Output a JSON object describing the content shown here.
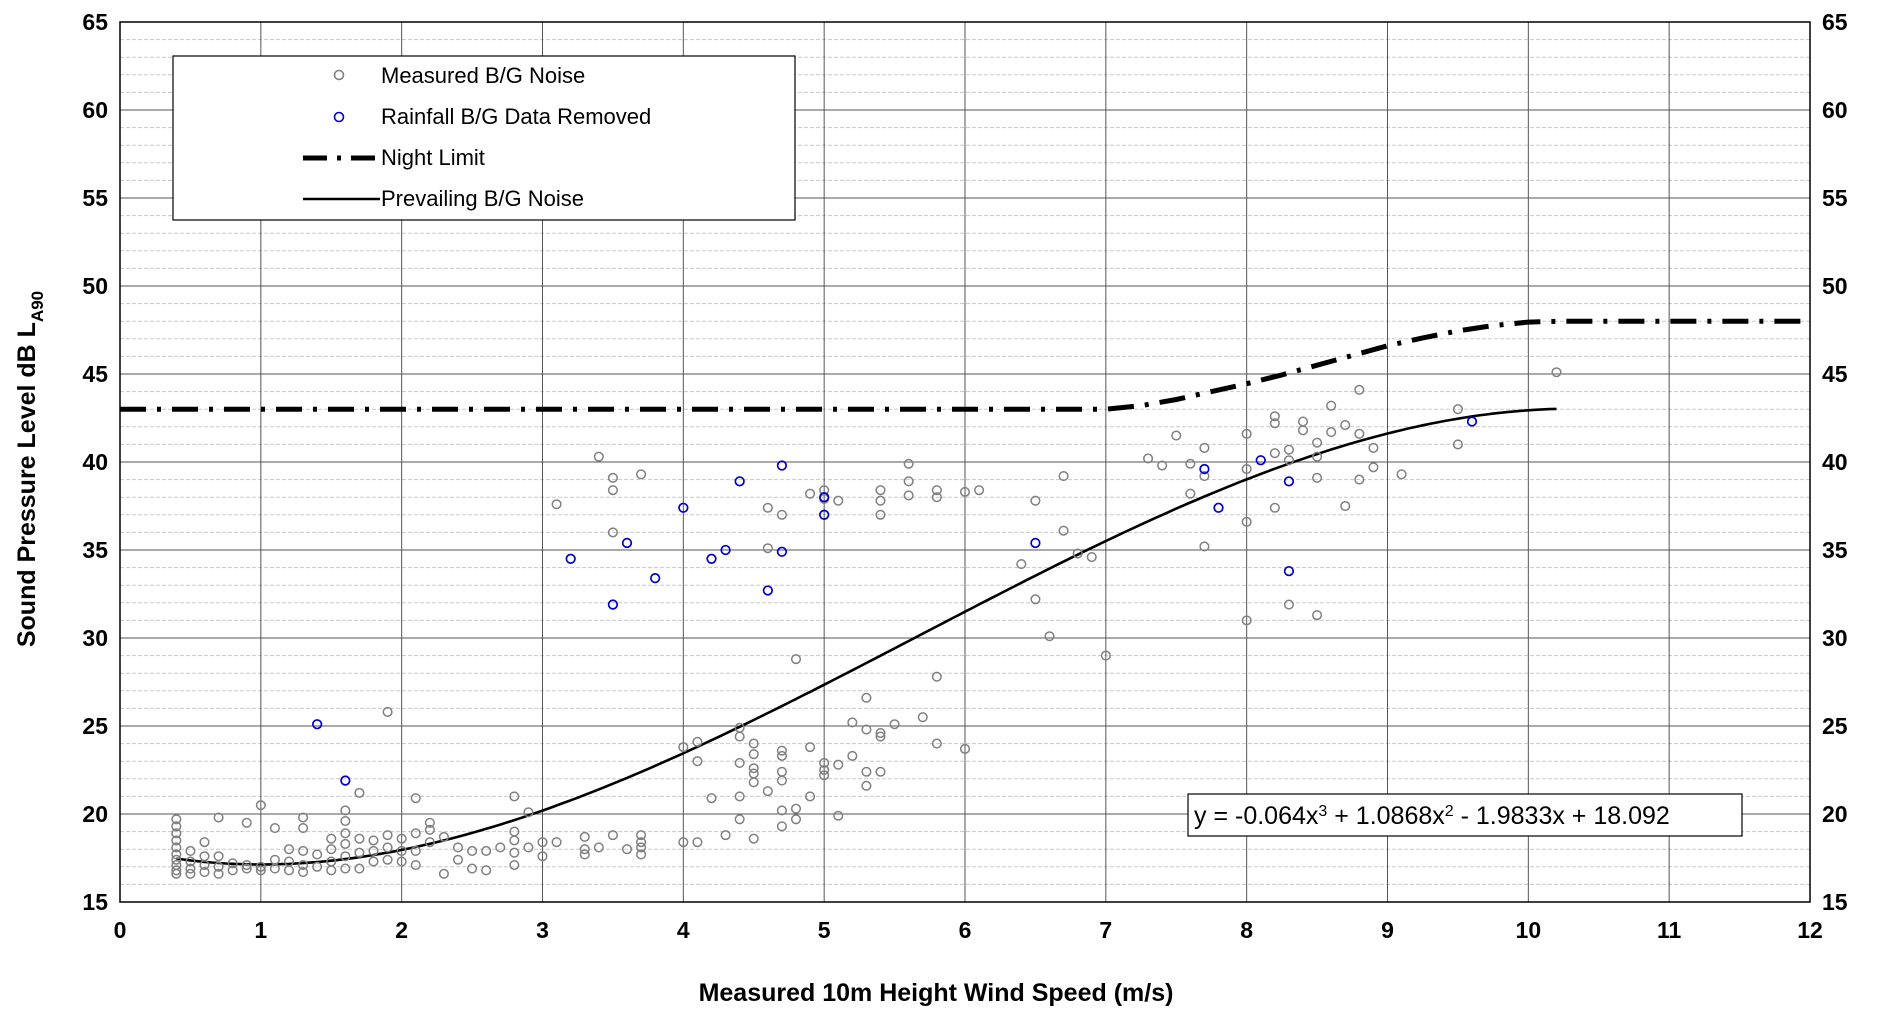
{
  "chart_data": {
    "type": "scatter",
    "xlabel": "Measured 10m Height Wind Speed (m/s)",
    "ylabel_main": "Sound Pressure Level dB L",
    "ylabel_sub": "A90",
    "xlim": [
      0,
      12
    ],
    "ylim": [
      15,
      65
    ],
    "x_ticks": [
      "0",
      "1",
      "2",
      "3",
      "4",
      "5",
      "6",
      "7",
      "8",
      "9",
      "10",
      "11",
      "12"
    ],
    "y_ticks": [
      "15",
      "20",
      "25",
      "30",
      "35",
      "40",
      "45",
      "50",
      "55",
      "60",
      "65"
    ],
    "grid": "major and minor",
    "legend_position": "top-left",
    "legend": {
      "measured": "Measured B/G Noise",
      "rainfall": "Rainfall B/G Data Removed",
      "night_limit": "Night Limit",
      "prevailing": "Prevailing B/G Noise"
    },
    "equation": {
      "prefix": "y = -0.064x",
      "sup1": "3",
      "mid1": " + 1.0868x",
      "sup2": "2",
      "rest": " - 1.9833x + 18.092"
    },
    "colors": {
      "measured": "#808080",
      "rainfall": "#0000cc",
      "lines": "#000000"
    },
    "series": [
      {
        "name": "Measured B/G Noise",
        "type": "scatter",
        "points": [
          [
            0.4,
            19.7
          ],
          [
            0.4,
            19.3
          ],
          [
            0.4,
            18.9
          ],
          [
            0.4,
            18.5
          ],
          [
            0.4,
            18.1
          ],
          [
            0.4,
            17.7
          ],
          [
            0.4,
            17.4
          ],
          [
            0.4,
            17.1
          ],
          [
            0.4,
            16.8
          ],
          [
            0.4,
            16.6
          ],
          [
            0.5,
            17.9
          ],
          [
            0.5,
            17.3
          ],
          [
            0.5,
            16.9
          ],
          [
            0.5,
            16.6
          ],
          [
            0.6,
            18.4
          ],
          [
            0.6,
            17.6
          ],
          [
            0.6,
            17.1
          ],
          [
            0.6,
            16.7
          ],
          [
            0.7,
            19.8
          ],
          [
            0.7,
            17.6
          ],
          [
            0.7,
            17.0
          ],
          [
            0.7,
            16.6
          ],
          [
            0.8,
            17.2
          ],
          [
            0.8,
            16.8
          ],
          [
            0.9,
            19.5
          ],
          [
            0.9,
            17.1
          ],
          [
            0.9,
            16.9
          ],
          [
            1.0,
            20.5
          ],
          [
            1.0,
            17.0
          ],
          [
            1.0,
            16.8
          ],
          [
            1.1,
            19.2
          ],
          [
            1.1,
            17.4
          ],
          [
            1.1,
            16.9
          ],
          [
            1.2,
            18.0
          ],
          [
            1.2,
            17.3
          ],
          [
            1.2,
            16.8
          ],
          [
            1.3,
            19.8
          ],
          [
            1.3,
            19.2
          ],
          [
            1.3,
            17.9
          ],
          [
            1.3,
            17.1
          ],
          [
            1.3,
            16.7
          ],
          [
            1.4,
            17.7
          ],
          [
            1.4,
            17.0
          ],
          [
            1.5,
            18.6
          ],
          [
            1.5,
            18.0
          ],
          [
            1.5,
            17.3
          ],
          [
            1.5,
            16.8
          ],
          [
            1.6,
            20.2
          ],
          [
            1.6,
            19.6
          ],
          [
            1.6,
            18.9
          ],
          [
            1.6,
            18.3
          ],
          [
            1.6,
            17.6
          ],
          [
            1.6,
            16.9
          ],
          [
            1.7,
            21.2
          ],
          [
            1.7,
            18.6
          ],
          [
            1.7,
            17.8
          ],
          [
            1.7,
            16.9
          ],
          [
            1.8,
            18.5
          ],
          [
            1.8,
            17.9
          ],
          [
            1.8,
            17.3
          ],
          [
            1.9,
            25.8
          ],
          [
            1.9,
            18.8
          ],
          [
            1.9,
            18.1
          ],
          [
            1.9,
            17.4
          ],
          [
            2.0,
            18.6
          ],
          [
            2.0,
            17.9
          ],
          [
            2.0,
            17.3
          ],
          [
            2.1,
            20.9
          ],
          [
            2.1,
            18.9
          ],
          [
            2.1,
            17.9
          ],
          [
            2.1,
            17.1
          ],
          [
            2.2,
            19.5
          ],
          [
            2.2,
            19.1
          ],
          [
            2.2,
            18.4
          ],
          [
            2.3,
            18.7
          ],
          [
            2.3,
            16.6
          ],
          [
            2.4,
            18.1
          ],
          [
            2.4,
            17.4
          ],
          [
            2.5,
            17.9
          ],
          [
            2.5,
            16.9
          ],
          [
            2.6,
            17.9
          ],
          [
            2.6,
            16.8
          ],
          [
            2.7,
            18.1
          ],
          [
            2.8,
            21.0
          ],
          [
            2.8,
            19.0
          ],
          [
            2.8,
            18.5
          ],
          [
            2.8,
            17.8
          ],
          [
            2.8,
            17.1
          ],
          [
            2.9,
            20.1
          ],
          [
            2.9,
            18.1
          ],
          [
            3.0,
            18.4
          ],
          [
            3.0,
            17.6
          ],
          [
            3.1,
            37.6
          ],
          [
            3.1,
            18.4
          ],
          [
            3.3,
            18.7
          ],
          [
            3.3,
            18.0
          ],
          [
            3.3,
            17.7
          ],
          [
            3.4,
            40.3
          ],
          [
            3.4,
            18.1
          ],
          [
            3.5,
            39.1
          ],
          [
            3.5,
            38.4
          ],
          [
            3.5,
            36.0
          ],
          [
            3.5,
            18.8
          ],
          [
            3.6,
            18.0
          ],
          [
            3.7,
            39.3
          ],
          [
            3.7,
            18.8
          ],
          [
            3.7,
            18.4
          ],
          [
            3.7,
            18.1
          ],
          [
            3.7,
            17.7
          ],
          [
            4.0,
            23.8
          ],
          [
            4.0,
            18.4
          ],
          [
            4.1,
            24.1
          ],
          [
            4.1,
            23.0
          ],
          [
            4.1,
            18.4
          ],
          [
            4.2,
            20.9
          ],
          [
            4.3,
            18.8
          ],
          [
            4.4,
            24.9
          ],
          [
            4.4,
            24.4
          ],
          [
            4.4,
            22.9
          ],
          [
            4.4,
            21.0
          ],
          [
            4.4,
            19.7
          ],
          [
            4.5,
            24.0
          ],
          [
            4.5,
            23.4
          ],
          [
            4.5,
            22.6
          ],
          [
            4.5,
            22.3
          ],
          [
            4.5,
            21.8
          ],
          [
            4.5,
            18.6
          ],
          [
            4.6,
            37.4
          ],
          [
            4.6,
            35.1
          ],
          [
            4.6,
            21.3
          ],
          [
            4.7,
            37.0
          ],
          [
            4.7,
            23.6
          ],
          [
            4.7,
            23.3
          ],
          [
            4.7,
            22.4
          ],
          [
            4.7,
            21.9
          ],
          [
            4.7,
            20.2
          ],
          [
            4.7,
            19.3
          ],
          [
            4.8,
            28.8
          ],
          [
            4.8,
            20.3
          ],
          [
            4.8,
            19.7
          ],
          [
            4.9,
            38.2
          ],
          [
            4.9,
            23.8
          ],
          [
            4.9,
            21.0
          ],
          [
            5.0,
            38.4
          ],
          [
            5.0,
            37.9
          ],
          [
            5.0,
            22.9
          ],
          [
            5.0,
            22.5
          ],
          [
            5.0,
            22.2
          ],
          [
            5.1,
            37.8
          ],
          [
            5.1,
            22.8
          ],
          [
            5.1,
            19.9
          ],
          [
            5.2,
            25.2
          ],
          [
            5.2,
            23.3
          ],
          [
            5.3,
            26.6
          ],
          [
            5.3,
            24.8
          ],
          [
            5.3,
            22.4
          ],
          [
            5.3,
            21.6
          ],
          [
            5.4,
            38.4
          ],
          [
            5.4,
            37.8
          ],
          [
            5.4,
            37.0
          ],
          [
            5.4,
            24.6
          ],
          [
            5.4,
            24.4
          ],
          [
            5.4,
            22.4
          ],
          [
            5.5,
            25.1
          ],
          [
            5.6,
            39.9
          ],
          [
            5.6,
            38.9
          ],
          [
            5.6,
            38.1
          ],
          [
            5.7,
            25.5
          ],
          [
            5.8,
            38.4
          ],
          [
            5.8,
            38.0
          ],
          [
            5.8,
            27.8
          ],
          [
            5.8,
            24.0
          ],
          [
            6.0,
            38.3
          ],
          [
            6.0,
            23.7
          ],
          [
            6.1,
            38.4
          ],
          [
            6.4,
            34.2
          ],
          [
            6.5,
            37.8
          ],
          [
            6.5,
            32.2
          ],
          [
            6.6,
            30.1
          ],
          [
            6.7,
            39.2
          ],
          [
            6.7,
            36.1
          ],
          [
            6.8,
            34.8
          ],
          [
            6.9,
            34.6
          ],
          [
            7.0,
            29.0
          ],
          [
            7.3,
            40.2
          ],
          [
            7.4,
            39.8
          ],
          [
            7.5,
            41.5
          ],
          [
            7.6,
            39.9
          ],
          [
            7.6,
            38.2
          ],
          [
            7.7,
            40.8
          ],
          [
            7.7,
            39.2
          ],
          [
            7.7,
            35.2
          ],
          [
            8.0,
            41.6
          ],
          [
            8.0,
            39.6
          ],
          [
            8.0,
            36.6
          ],
          [
            8.0,
            31.0
          ],
          [
            8.2,
            42.6
          ],
          [
            8.2,
            42.2
          ],
          [
            8.2,
            40.5
          ],
          [
            8.2,
            37.4
          ],
          [
            8.3,
            40.7
          ],
          [
            8.3,
            40.1
          ],
          [
            8.3,
            31.9
          ],
          [
            8.4,
            42.3
          ],
          [
            8.4,
            41.8
          ],
          [
            8.5,
            41.1
          ],
          [
            8.5,
            40.3
          ],
          [
            8.5,
            39.1
          ],
          [
            8.5,
            31.3
          ],
          [
            8.6,
            43.2
          ],
          [
            8.6,
            41.7
          ],
          [
            8.7,
            42.1
          ],
          [
            8.7,
            37.5
          ],
          [
            8.8,
            44.1
          ],
          [
            8.8,
            41.6
          ],
          [
            8.8,
            39.0
          ],
          [
            8.9,
            40.8
          ],
          [
            8.9,
            39.7
          ],
          [
            9.1,
            39.3
          ],
          [
            9.5,
            43.0
          ],
          [
            9.5,
            41.0
          ],
          [
            10.2,
            45.1
          ]
        ]
      },
      {
        "name": "Rainfall B/G Data Removed",
        "type": "scatter",
        "points": [
          [
            1.4,
            25.1
          ],
          [
            1.6,
            21.9
          ],
          [
            3.2,
            34.5
          ],
          [
            3.5,
            31.9
          ],
          [
            3.6,
            35.4
          ],
          [
            3.8,
            33.4
          ],
          [
            4.0,
            37.4
          ],
          [
            4.2,
            34.5
          ],
          [
            4.3,
            35.0
          ],
          [
            4.4,
            38.9
          ],
          [
            4.6,
            32.7
          ],
          [
            4.7,
            39.8
          ],
          [
            4.7,
            34.9
          ],
          [
            5.0,
            38.0
          ],
          [
            5.0,
            37.0
          ],
          [
            6.5,
            35.4
          ],
          [
            7.7,
            39.6
          ],
          [
            7.8,
            37.4
          ],
          [
            8.1,
            40.1
          ],
          [
            8.3,
            38.9
          ],
          [
            8.3,
            33.8
          ],
          [
            9.6,
            42.3
          ]
        ]
      },
      {
        "name": "Night Limit",
        "type": "line",
        "points": [
          [
            0,
            43
          ],
          [
            1,
            43
          ],
          [
            2,
            43
          ],
          [
            3,
            43
          ],
          [
            4,
            43
          ],
          [
            5,
            43
          ],
          [
            6,
            43
          ],
          [
            7,
            43
          ],
          [
            7.25,
            43.2
          ],
          [
            7.5,
            43.55
          ],
          [
            7.75,
            44.0
          ],
          [
            8.0,
            44.45
          ],
          [
            8.25,
            44.95
          ],
          [
            8.5,
            45.5
          ],
          [
            8.75,
            46.05
          ],
          [
            9.0,
            46.6
          ],
          [
            9.25,
            47.05
          ],
          [
            9.5,
            47.45
          ],
          [
            9.75,
            47.75
          ],
          [
            10.0,
            47.95
          ],
          [
            10.25,
            48
          ],
          [
            11,
            48
          ],
          [
            12,
            48
          ]
        ]
      },
      {
        "name": "Prevailing B/G Noise",
        "type": "fit",
        "coefficients": [
          18.092,
          -1.9833,
          1.0868,
          -0.064
        ],
        "x_range": [
          0.4,
          10.2
        ]
      }
    ]
  }
}
